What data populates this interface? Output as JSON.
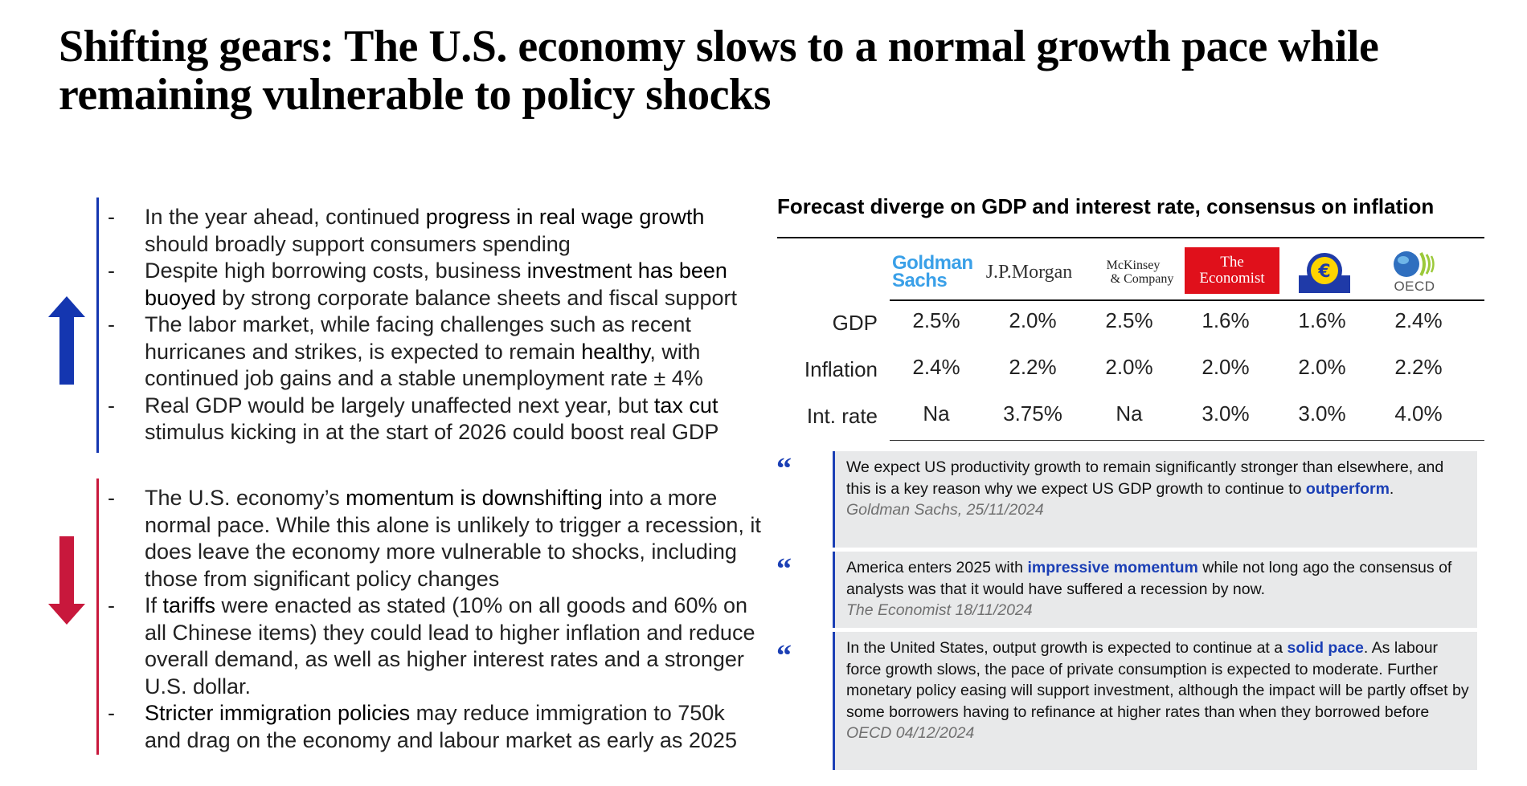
{
  "title": "Shifting gears: The U.S. economy slows to a normal growth pace while remaining vulnerable to policy shocks",
  "upside": {
    "icon": "up-arrow-icon",
    "color": "#1436b0",
    "bullets": [
      {
        "dash": "-",
        "a": "In the year ahead, continued ",
        "b": "progress in real wage growth",
        "c": " should broadly support consumers spending"
      },
      {
        "dash": "-",
        "a": "Despite high borrowing costs, business ",
        "b": "investment has been buoyed",
        "c": " by strong corporate balance sheets and fiscal support"
      },
      {
        "dash": "-",
        "a": "The labor market, while facing challenges such as recent hurricanes and strikes, is expected to remain ",
        "b": "healthy",
        "c": ", with continued job gains and a stable unemployment rate ± 4%"
      },
      {
        "dash": "-",
        "a": "Real GDP would be largely unaffected next year, but ",
        "b": "tax cut",
        "c": " stimulus kicking in at the start of 2026 could boost real GDP"
      }
    ]
  },
  "downside": {
    "icon": "down-arrow-icon",
    "color": "#c8183c",
    "bullets": [
      {
        "dash": "-",
        "a": "The U.S. economy’s ",
        "b": "momentum is downshifting",
        "c": " into a more normal pace. While this alone is unlikely to trigger a recession, it does leave the economy more vulnerable to shocks, including those from significant policy changes"
      },
      {
        "dash": "-",
        "a": "If ",
        "b": "tariffs",
        "c": " were enacted as stated (10% on all goods and 60% on all Chinese items) they could lead to higher inflation and reduce overall demand, as well as higher interest rates and a stronger U.S. dollar."
      },
      {
        "dash": "-",
        "a": "",
        "b": "Stricter immigration policies",
        "c": " may reduce immigration to 750k and drag on the economy and labour market as early as 2025"
      }
    ]
  },
  "forecast": {
    "title": "Forecast diverge on GDP and interest rate, consensus on inflation",
    "logos": {
      "gs": [
        "Goldman",
        "Sachs"
      ],
      "jpm": "J.P.Morgan",
      "mck": [
        "McKinsey",
        "& Company"
      ],
      "eco": [
        "The",
        "Economist"
      ],
      "ecb_icon": "ecb-euro-logo-icon",
      "oecd": "OECD",
      "oecd_icon": "oecd-globe-logo-icon"
    },
    "rows": [
      {
        "label": "GDP",
        "values": [
          "2.5%",
          "2.0%",
          "2.5%",
          "1.6%",
          "1.6%",
          "2.4%"
        ]
      },
      {
        "label": "Inflation",
        "values": [
          "2.4%",
          "2.2%",
          "2.0%",
          "2.0%",
          "2.0%",
          "2.2%"
        ]
      },
      {
        "label": "Int. rate",
        "values": [
          "Na",
          "3.75%",
          "Na",
          "3.0%",
          "3.0%",
          "4.0%"
        ]
      }
    ]
  },
  "quotes": [
    {
      "mark": "“",
      "a": "We expect US productivity growth to remain significantly stronger than elsewhere, and this is a key reason why we expect US GDP growth to continue to ",
      "hl": "outperform",
      "c": ".",
      "source": "Goldman Sachs, 25/11/2024"
    },
    {
      "mark": "“",
      "a": "America enters 2025 with ",
      "hl": "impressive momentum",
      "c": " while not long ago the consensus of analysts was that it would have suffered a recession by now.",
      "source": "The Economist 18/11/2024"
    },
    {
      "mark": "“",
      "a": "In the United States, output growth is expected to continue at a ",
      "hl": "solid pace",
      "c": ". As labour force growth slows, the pace of private consumption is expected to moderate. Further monetary policy easing will support investment, although the impact will be partly offset by some borrowers having to refinance at higher rates than when they borrowed before",
      "source": "OECD 04/12/2024"
    }
  ]
}
